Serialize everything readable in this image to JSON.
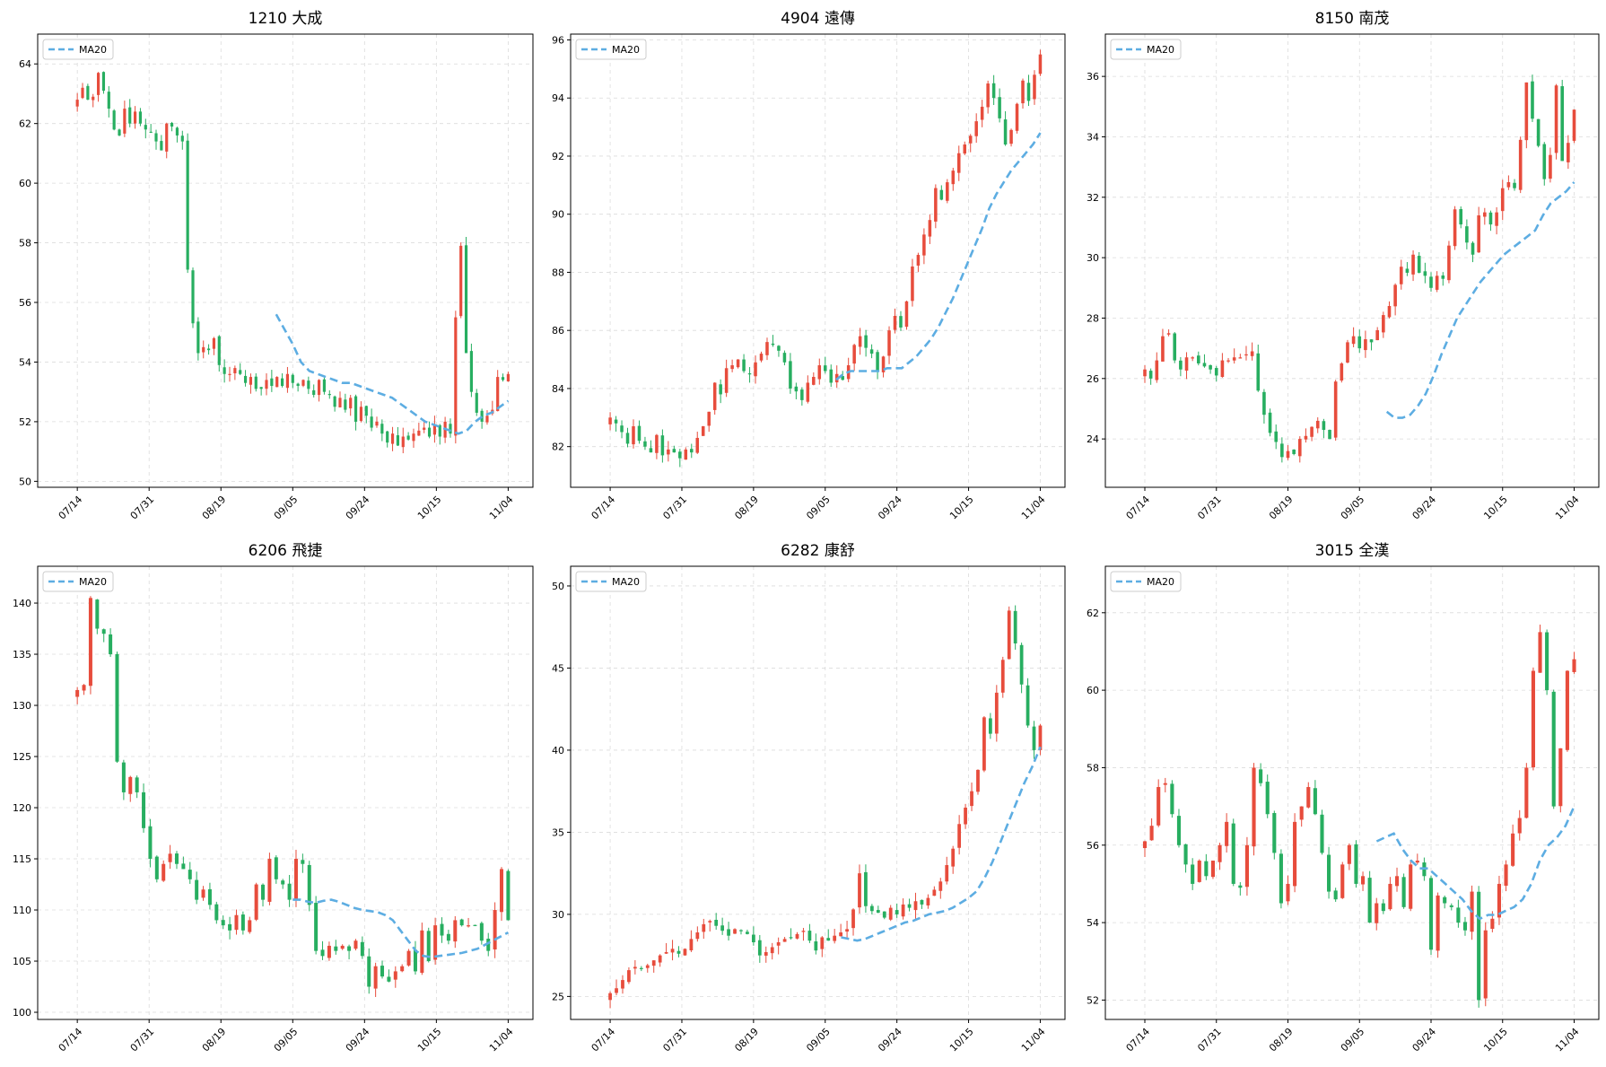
{
  "colors": {
    "up": "#e74c3c",
    "down": "#27ae60",
    "ma": "#5dade2",
    "grid": "#cccccc"
  },
  "legend_label": "MA20",
  "chart_data": [
    {
      "type": "candlestick",
      "title": "1210 大成",
      "xlabel": "",
      "ylabel": "",
      "x_ticks": [
        "07/14",
        "07/31",
        "08/19",
        "09/05",
        "09/24",
        "10/15",
        "11/04"
      ],
      "ylim": [
        49.8,
        65.0
      ],
      "y_ticks": [
        50,
        52,
        54,
        56,
        58,
        60,
        62,
        64
      ],
      "grid": true,
      "legend": "top-left",
      "close": [
        62.8,
        63.2,
        62.8,
        62.9,
        63.7,
        63.1,
        62.5,
        61.8,
        61.6,
        62.5,
        62.0,
        62.4,
        62.0,
        61.8,
        61.7,
        61.4,
        61.1,
        62.0,
        61.9,
        61.6,
        61.4,
        57.1,
        55.3,
        54.3,
        54.5,
        54.4,
        54.8,
        53.9,
        53.6,
        53.6,
        53.8,
        53.6,
        53.3,
        53.5,
        53.1,
        53.1,
        53.4,
        53.2,
        53.5,
        53.2,
        53.6,
        53.3,
        53.2,
        53.4,
        53.1,
        52.9,
        53.4,
        53.0,
        52.9,
        52.5,
        52.8,
        52.4,
        52.8,
        52.0,
        52.5,
        52.2,
        51.8,
        52.0,
        51.6,
        51.3,
        51.6,
        51.2,
        51.5,
        51.4,
        51.6,
        51.7,
        51.8,
        51.5,
        51.9,
        51.5,
        52.0,
        51.6,
        55.5,
        57.9,
        54.3,
        53.0,
        52.3,
        52.0,
        52.2,
        52.4,
        53.5,
        53.4,
        53.6
      ],
      "ma20": [
        null,
        null,
        null,
        null,
        null,
        null,
        null,
        null,
        null,
        null,
        null,
        null,
        null,
        null,
        null,
        null,
        null,
        null,
        null,
        null,
        null,
        null,
        null,
        null,
        55.6,
        55.1,
        54.6,
        54.0,
        53.7,
        53.6,
        53.5,
        53.4,
        53.3,
        53.3,
        53.2,
        53.1,
        53.0,
        52.9,
        52.8,
        52.6,
        52.4,
        52.2,
        52.0,
        51.9,
        51.8,
        51.7,
        51.6,
        51.7,
        52.0,
        52.2,
        52.3,
        52.5,
        52.7
      ]
    },
    {
      "type": "candlestick",
      "title": "4904 遠傳",
      "xlabel": "",
      "ylabel": "",
      "x_ticks": [
        "07/14",
        "07/31",
        "08/19",
        "09/05",
        "09/24",
        "10/15",
        "11/04"
      ],
      "ylim": [
        80.6,
        96.2
      ],
      "y_ticks": [
        82,
        84,
        86,
        88,
        90,
        92,
        94,
        96
      ],
      "grid": true,
      "legend": "top-left",
      "close": [
        83.0,
        82.8,
        82.5,
        82.1,
        82.7,
        82.2,
        82.0,
        81.8,
        82.4,
        81.7,
        81.9,
        81.8,
        81.6,
        81.9,
        81.8,
        82.3,
        82.7,
        83.2,
        84.2,
        83.8,
        84.7,
        84.8,
        85.0,
        84.6,
        84.5,
        84.9,
        85.2,
        85.6,
        85.5,
        85.3,
        84.9,
        84.0,
        83.9,
        83.6,
        84.2,
        84.4,
        84.8,
        84.6,
        84.2,
        84.5,
        84.3,
        84.8,
        85.5,
        85.8,
        85.4,
        85.2,
        84.6,
        85.1,
        86.0,
        86.5,
        86.1,
        87.0,
        88.2,
        88.6,
        89.3,
        89.8,
        90.9,
        90.5,
        91.1,
        91.5,
        92.1,
        92.4,
        92.7,
        93.2,
        93.7,
        94.5,
        94.0,
        93.3,
        92.4,
        92.9,
        93.8,
        94.6,
        93.9,
        94.8,
        95.5
      ],
      "ma20": [
        null,
        null,
        null,
        null,
        null,
        null,
        null,
        null,
        null,
        null,
        null,
        null,
        null,
        null,
        null,
        null,
        null,
        null,
        null,
        null,
        null,
        null,
        null,
        null,
        null,
        null,
        null,
        null,
        null,
        null,
        null,
        84.3,
        84.5,
        84.6,
        84.6,
        84.6,
        84.6,
        84.6,
        84.7,
        84.7,
        84.7,
        84.9,
        85.1,
        85.4,
        85.7,
        86.1,
        86.6,
        87.1,
        87.7,
        88.3,
        88.9,
        89.5,
        90.2,
        90.7,
        91.1,
        91.5,
        91.8,
        92.1,
        92.4,
        92.8
      ]
    },
    {
      "type": "candlestick",
      "title": "8150 南茂",
      "xlabel": "",
      "ylabel": "",
      "x_ticks": [
        "07/14",
        "07/31",
        "08/19",
        "09/05",
        "09/24",
        "10/15",
        "11/04"
      ],
      "ylim": [
        22.4,
        37.4
      ],
      "y_ticks": [
        24,
        26,
        28,
        30,
        32,
        34,
        36
      ],
      "grid": true,
      "legend": "top-left",
      "close": [
        26.3,
        26.0,
        26.6,
        27.4,
        27.5,
        26.6,
        26.3,
        26.7,
        26.7,
        26.5,
        26.4,
        26.3,
        26.1,
        26.6,
        26.6,
        26.7,
        26.7,
        26.8,
        26.9,
        25.6,
        24.8,
        24.2,
        23.9,
        23.4,
        23.6,
        23.5,
        24.0,
        24.1,
        24.4,
        24.6,
        24.3,
        24.0,
        25.9,
        26.5,
        27.2,
        27.4,
        27.0,
        27.3,
        27.2,
        27.6,
        28.1,
        28.4,
        29.1,
        29.7,
        29.5,
        30.1,
        29.5,
        29.4,
        29.0,
        29.4,
        29.3,
        30.4,
        31.6,
        31.1,
        30.5,
        30.1,
        31.4,
        31.5,
        31.1,
        31.5,
        32.3,
        32.5,
        32.3,
        33.9,
        35.8,
        34.6,
        33.7,
        32.6,
        33.4,
        35.7,
        33.2,
        33.8,
        34.9
      ],
      "ma20": [
        null,
        null,
        null,
        null,
        null,
        null,
        null,
        null,
        null,
        null,
        null,
        null,
        null,
        null,
        null,
        null,
        null,
        null,
        null,
        null,
        null,
        null,
        null,
        null,
        null,
        null,
        null,
        null,
        null,
        null,
        null,
        24.9,
        24.7,
        24.7,
        24.8,
        25.1,
        25.5,
        26.1,
        26.8,
        27.4,
        28.0,
        28.4,
        28.8,
        29.2,
        29.5,
        29.8,
        30.1,
        30.3,
        30.5,
        30.7,
        30.9,
        31.4,
        31.8,
        32.0,
        32.2,
        32.5
      ]
    },
    {
      "type": "candlestick",
      "title": "6206 飛捷",
      "xlabel": "",
      "ylabel": "",
      "x_ticks": [
        "07/14",
        "07/31",
        "08/19",
        "09/05",
        "09/24",
        "10/15",
        "11/04"
      ],
      "ylim": [
        99.3,
        143.6
      ],
      "y_ticks": [
        100,
        105,
        110,
        115,
        120,
        125,
        130,
        135,
        140
      ],
      "grid": true,
      "legend": "top-left",
      "close": [
        131.5,
        132.0,
        140.5,
        137.5,
        137.0,
        135.0,
        124.5,
        121.5,
        123.0,
        121.5,
        118.0,
        115.0,
        113.0,
        114.5,
        115.5,
        114.5,
        114.0,
        113.0,
        111.0,
        112.0,
        110.5,
        109.0,
        108.5,
        108.0,
        109.5,
        108.0,
        109.0,
        112.5,
        111.0,
        115.0,
        113.0,
        112.5,
        111.0,
        115.0,
        114.5,
        110.5,
        106.0,
        105.5,
        106.5,
        106.0,
        106.5,
        106.0,
        107.0,
        105.5,
        102.5,
        104.5,
        103.5,
        103.0,
        104.0,
        104.5,
        106.0,
        104.0,
        108.0,
        105.0,
        108.5,
        107.5,
        107.0,
        109.0,
        108.5,
        108.5,
        108.5,
        107.0,
        106.0,
        110.0,
        114.0,
        109.0
      ],
      "ma20": [
        null,
        null,
        null,
        null,
        null,
        null,
        null,
        null,
        null,
        null,
        null,
        null,
        null,
        null,
        null,
        null,
        null,
        null,
        null,
        null,
        null,
        null,
        null,
        null,
        null,
        null,
        null,
        null,
        111.0,
        111.0,
        110.8,
        110.7,
        110.9,
        111.0,
        110.8,
        110.5,
        110.2,
        110.0,
        109.9,
        109.8,
        109.5,
        109.0,
        108.0,
        107.0,
        106.0,
        105.5,
        105.4,
        105.5,
        105.6,
        105.7,
        105.8,
        106.0,
        106.2,
        106.6,
        107.0,
        107.4,
        107.8
      ]
    },
    {
      "type": "candlestick",
      "title": "6282 康舒",
      "xlabel": "",
      "ylabel": "",
      "x_ticks": [
        "07/14",
        "07/31",
        "08/19",
        "09/05",
        "09/24",
        "10/15",
        "11/04"
      ],
      "ylim": [
        23.6,
        51.2
      ],
      "y_ticks": [
        25,
        30,
        35,
        40,
        45,
        50
      ],
      "grid": true,
      "legend": "top-left",
      "close": [
        25.2,
        25.5,
        26.0,
        26.6,
        26.8,
        26.7,
        26.9,
        27.2,
        27.5,
        27.7,
        27.9,
        27.6,
        27.9,
        28.5,
        28.9,
        29.4,
        29.6,
        29.3,
        29.0,
        28.7,
        29.1,
        29.0,
        28.8,
        28.3,
        27.5,
        27.7,
        28.0,
        28.3,
        28.5,
        28.6,
        28.8,
        29.0,
        28.4,
        27.8,
        28.6,
        28.4,
        28.7,
        28.9,
        29.1,
        30.3,
        32.5,
        30.5,
        30.2,
        30.1,
        29.8,
        30.4,
        30.0,
        30.6,
        30.4,
        30.8,
        30.6,
        31.0,
        31.5,
        32.0,
        33.0,
        34.0,
        35.5,
        36.5,
        37.5,
        38.8,
        42.0,
        41.0,
        43.5,
        45.5,
        48.5,
        46.5,
        44.0,
        41.5,
        40.0,
        41.5
      ],
      "ma20": [
        null,
        null,
        null,
        null,
        null,
        null,
        null,
        null,
        null,
        null,
        null,
        null,
        null,
        null,
        null,
        null,
        null,
        null,
        null,
        null,
        null,
        null,
        null,
        null,
        null,
        null,
        null,
        null,
        null,
        28.6,
        28.5,
        28.4,
        28.5,
        28.7,
        28.9,
        29.1,
        29.3,
        29.5,
        29.6,
        29.8,
        30.0,
        30.1,
        30.2,
        30.4,
        30.7,
        31.0,
        31.4,
        32.2,
        33.2,
        34.4,
        35.6,
        36.8,
        38.0,
        39.0,
        40.2
      ]
    },
    {
      "type": "candlestick",
      "title": "3015 全漢",
      "xlabel": "",
      "ylabel": "",
      "x_ticks": [
        "07/14",
        "07/31",
        "08/19",
        "09/05",
        "09/24",
        "10/15",
        "11/04"
      ],
      "ylim": [
        51.5,
        63.2
      ],
      "y_ticks": [
        52,
        54,
        56,
        58,
        60,
        62
      ],
      "grid": true,
      "legend": "top-left",
      "close": [
        56.1,
        56.5,
        57.5,
        57.6,
        56.8,
        56.0,
        55.5,
        55.0,
        55.6,
        55.2,
        55.6,
        56.0,
        56.6,
        55.0,
        54.9,
        56.0,
        58.0,
        57.6,
        56.8,
        55.8,
        54.5,
        55.0,
        56.6,
        57.0,
        57.5,
        56.8,
        55.8,
        54.8,
        54.6,
        55.5,
        56.0,
        55.0,
        55.2,
        54.0,
        54.5,
        54.3,
        55.0,
        55.2,
        54.4,
        55.5,
        55.6,
        55.2,
        53.3,
        54.7,
        54.5,
        54.4,
        54.0,
        53.8,
        54.8,
        52.0,
        53.8,
        54.1,
        55.0,
        55.5,
        56.3,
        56.7,
        58.0,
        60.5,
        61.5,
        60.0,
        57.0,
        58.5,
        60.5,
        60.8
      ],
      "ma20": [
        null,
        null,
        null,
        null,
        null,
        null,
        null,
        null,
        null,
        null,
        null,
        null,
        null,
        null,
        null,
        null,
        null,
        null,
        null,
        null,
        null,
        null,
        null,
        null,
        null,
        null,
        null,
        56.1,
        56.2,
        56.3,
        55.9,
        55.6,
        55.4,
        55.4,
        55.2,
        55.0,
        54.8,
        54.6,
        54.3,
        54.1,
        54.2,
        54.2,
        54.3,
        54.4,
        54.6,
        55.0,
        55.6,
        56.0,
        56.2,
        56.5,
        57.0
      ]
    }
  ]
}
